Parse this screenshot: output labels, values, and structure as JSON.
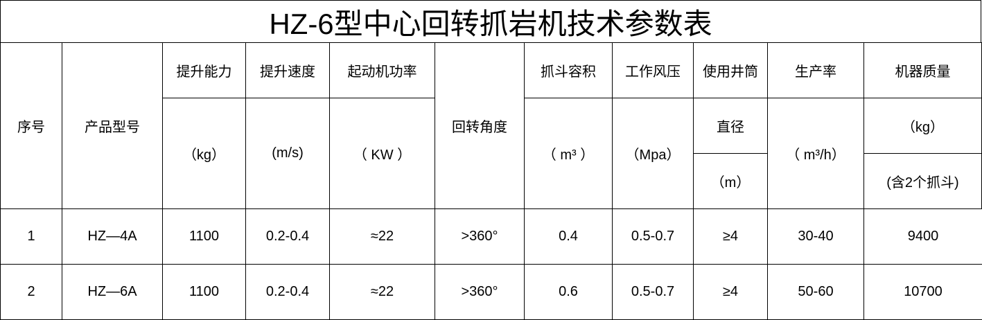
{
  "title": "HZ-6型中心回转抓岩机技术参数表",
  "headers": {
    "index": "序号",
    "model": "产品型号",
    "lift_capacity": {
      "label": "提升能力",
      "unit": "（kg）"
    },
    "lift_speed": {
      "label": "提升速度",
      "unit": "(m/s)"
    },
    "motor_power": {
      "label": "起动机功率",
      "unit": "（ KW ）"
    },
    "rotation_angle": "回转角度",
    "bucket_volume": {
      "label": "抓斗容积",
      "unit": "（ m³ ）"
    },
    "air_pressure": {
      "label": "工作风压",
      "unit": "（Mpa）"
    },
    "shaft": {
      "label": "使用井筒",
      "sub": "直径",
      "unit": "（m）"
    },
    "productivity": {
      "label": "生产率",
      "unit": "（ m³/h）"
    },
    "mass": {
      "label": "机器质量",
      "unit": "（kg）",
      "note": "(含2个抓斗)"
    }
  },
  "rows": [
    [
      "1",
      "HZ—4A",
      "1100",
      "0.2-0.4",
      "≈22",
      ">360°",
      "0.4",
      "0.5-0.7",
      "≥4",
      "30-40",
      "9400"
    ],
    [
      "2",
      "HZ—6A",
      "1100",
      "0.2-0.4",
      "≈22",
      ">360°",
      "0.6",
      "0.5-0.7",
      "≥4",
      "50-60",
      "10700"
    ]
  ]
}
